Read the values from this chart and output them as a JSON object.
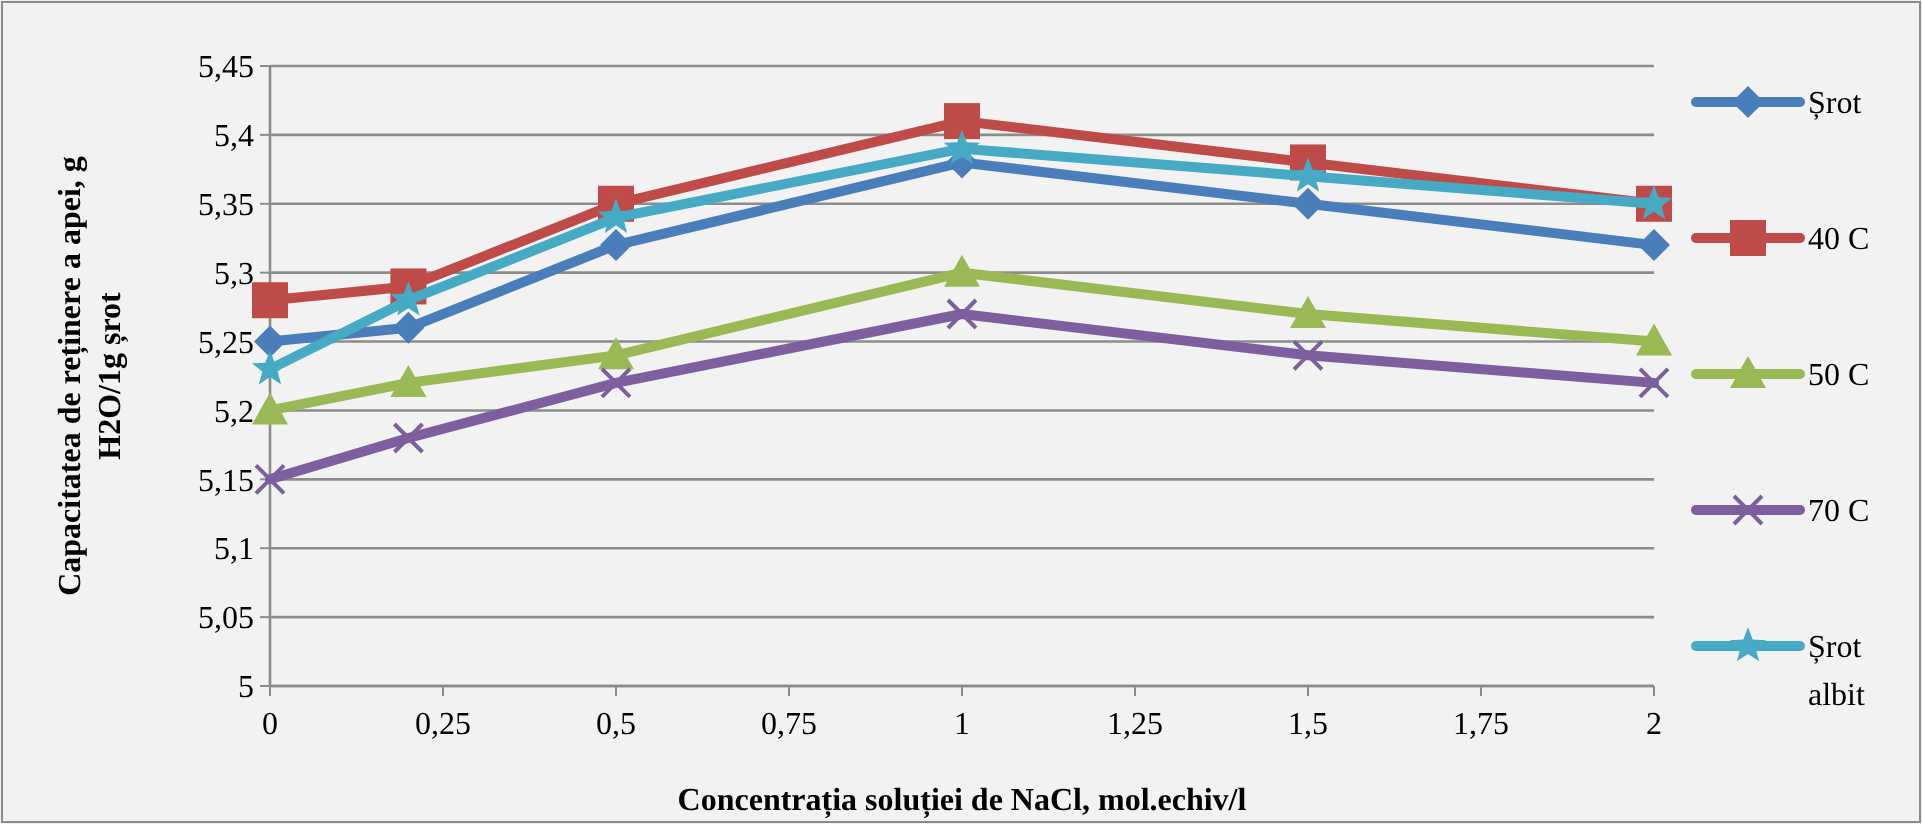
{
  "chart_data": {
    "type": "line",
    "xlabel": "Concentrația soluției de NaCl, mol.echiv/l",
    "ylabel": "Capacitatea de reținere a apei, g H2O/1g șrot",
    "x": [
      0,
      0.2,
      0.5,
      1,
      1.5,
      2
    ],
    "series": [
      {
        "name": "Șrot",
        "color": "#4a7ebb",
        "marker": "diamond",
        "values": [
          5.25,
          5.26,
          5.32,
          5.38,
          5.35,
          5.32
        ]
      },
      {
        "name": "40 C",
        "color": "#be4b48",
        "marker": "square",
        "values": [
          5.28,
          5.29,
          5.35,
          5.41,
          5.38,
          5.35
        ]
      },
      {
        "name": "50 C",
        "color": "#98b954",
        "marker": "triangle",
        "values": [
          5.2,
          5.22,
          5.24,
          5.3,
          5.27,
          5.25
        ]
      },
      {
        "name": "70 C",
        "color": "#7d5fa0",
        "marker": "cross",
        "values": [
          5.15,
          5.18,
          5.22,
          5.27,
          5.24,
          5.22
        ]
      },
      {
        "name": "Șrot albit",
        "color": "#46aac5",
        "marker": "star",
        "values": [
          5.23,
          5.28,
          5.34,
          5.39,
          5.37,
          5.35
        ]
      }
    ],
    "xlim": [
      0,
      2
    ],
    "xticks": [
      {
        "value": 0,
        "label": "0"
      },
      {
        "value": 0.25,
        "label": "0,25"
      },
      {
        "value": 0.5,
        "label": "0,5"
      },
      {
        "value": 0.75,
        "label": "0,75"
      },
      {
        "value": 1,
        "label": "1"
      },
      {
        "value": 1.25,
        "label": "1,25"
      },
      {
        "value": 1.5,
        "label": "1,5"
      },
      {
        "value": 1.75,
        "label": "1,75"
      },
      {
        "value": 2,
        "label": "2"
      }
    ],
    "ylim": [
      5,
      5.45
    ],
    "yticks": [
      {
        "value": 5,
        "label": "5"
      },
      {
        "value": 5.05,
        "label": "5,05"
      },
      {
        "value": 5.1,
        "label": "5,1"
      },
      {
        "value": 5.15,
        "label": "5,15"
      },
      {
        "value": 5.2,
        "label": "5,2"
      },
      {
        "value": 5.25,
        "label": "5,25"
      },
      {
        "value": 5.3,
        "label": "5,3"
      },
      {
        "value": 5.35,
        "label": "5,35"
      },
      {
        "value": 5.4,
        "label": "5,4"
      },
      {
        "value": 5.45,
        "label": "5,45"
      }
    ],
    "grid": "y",
    "legend": "right",
    "line_style": "solid"
  }
}
